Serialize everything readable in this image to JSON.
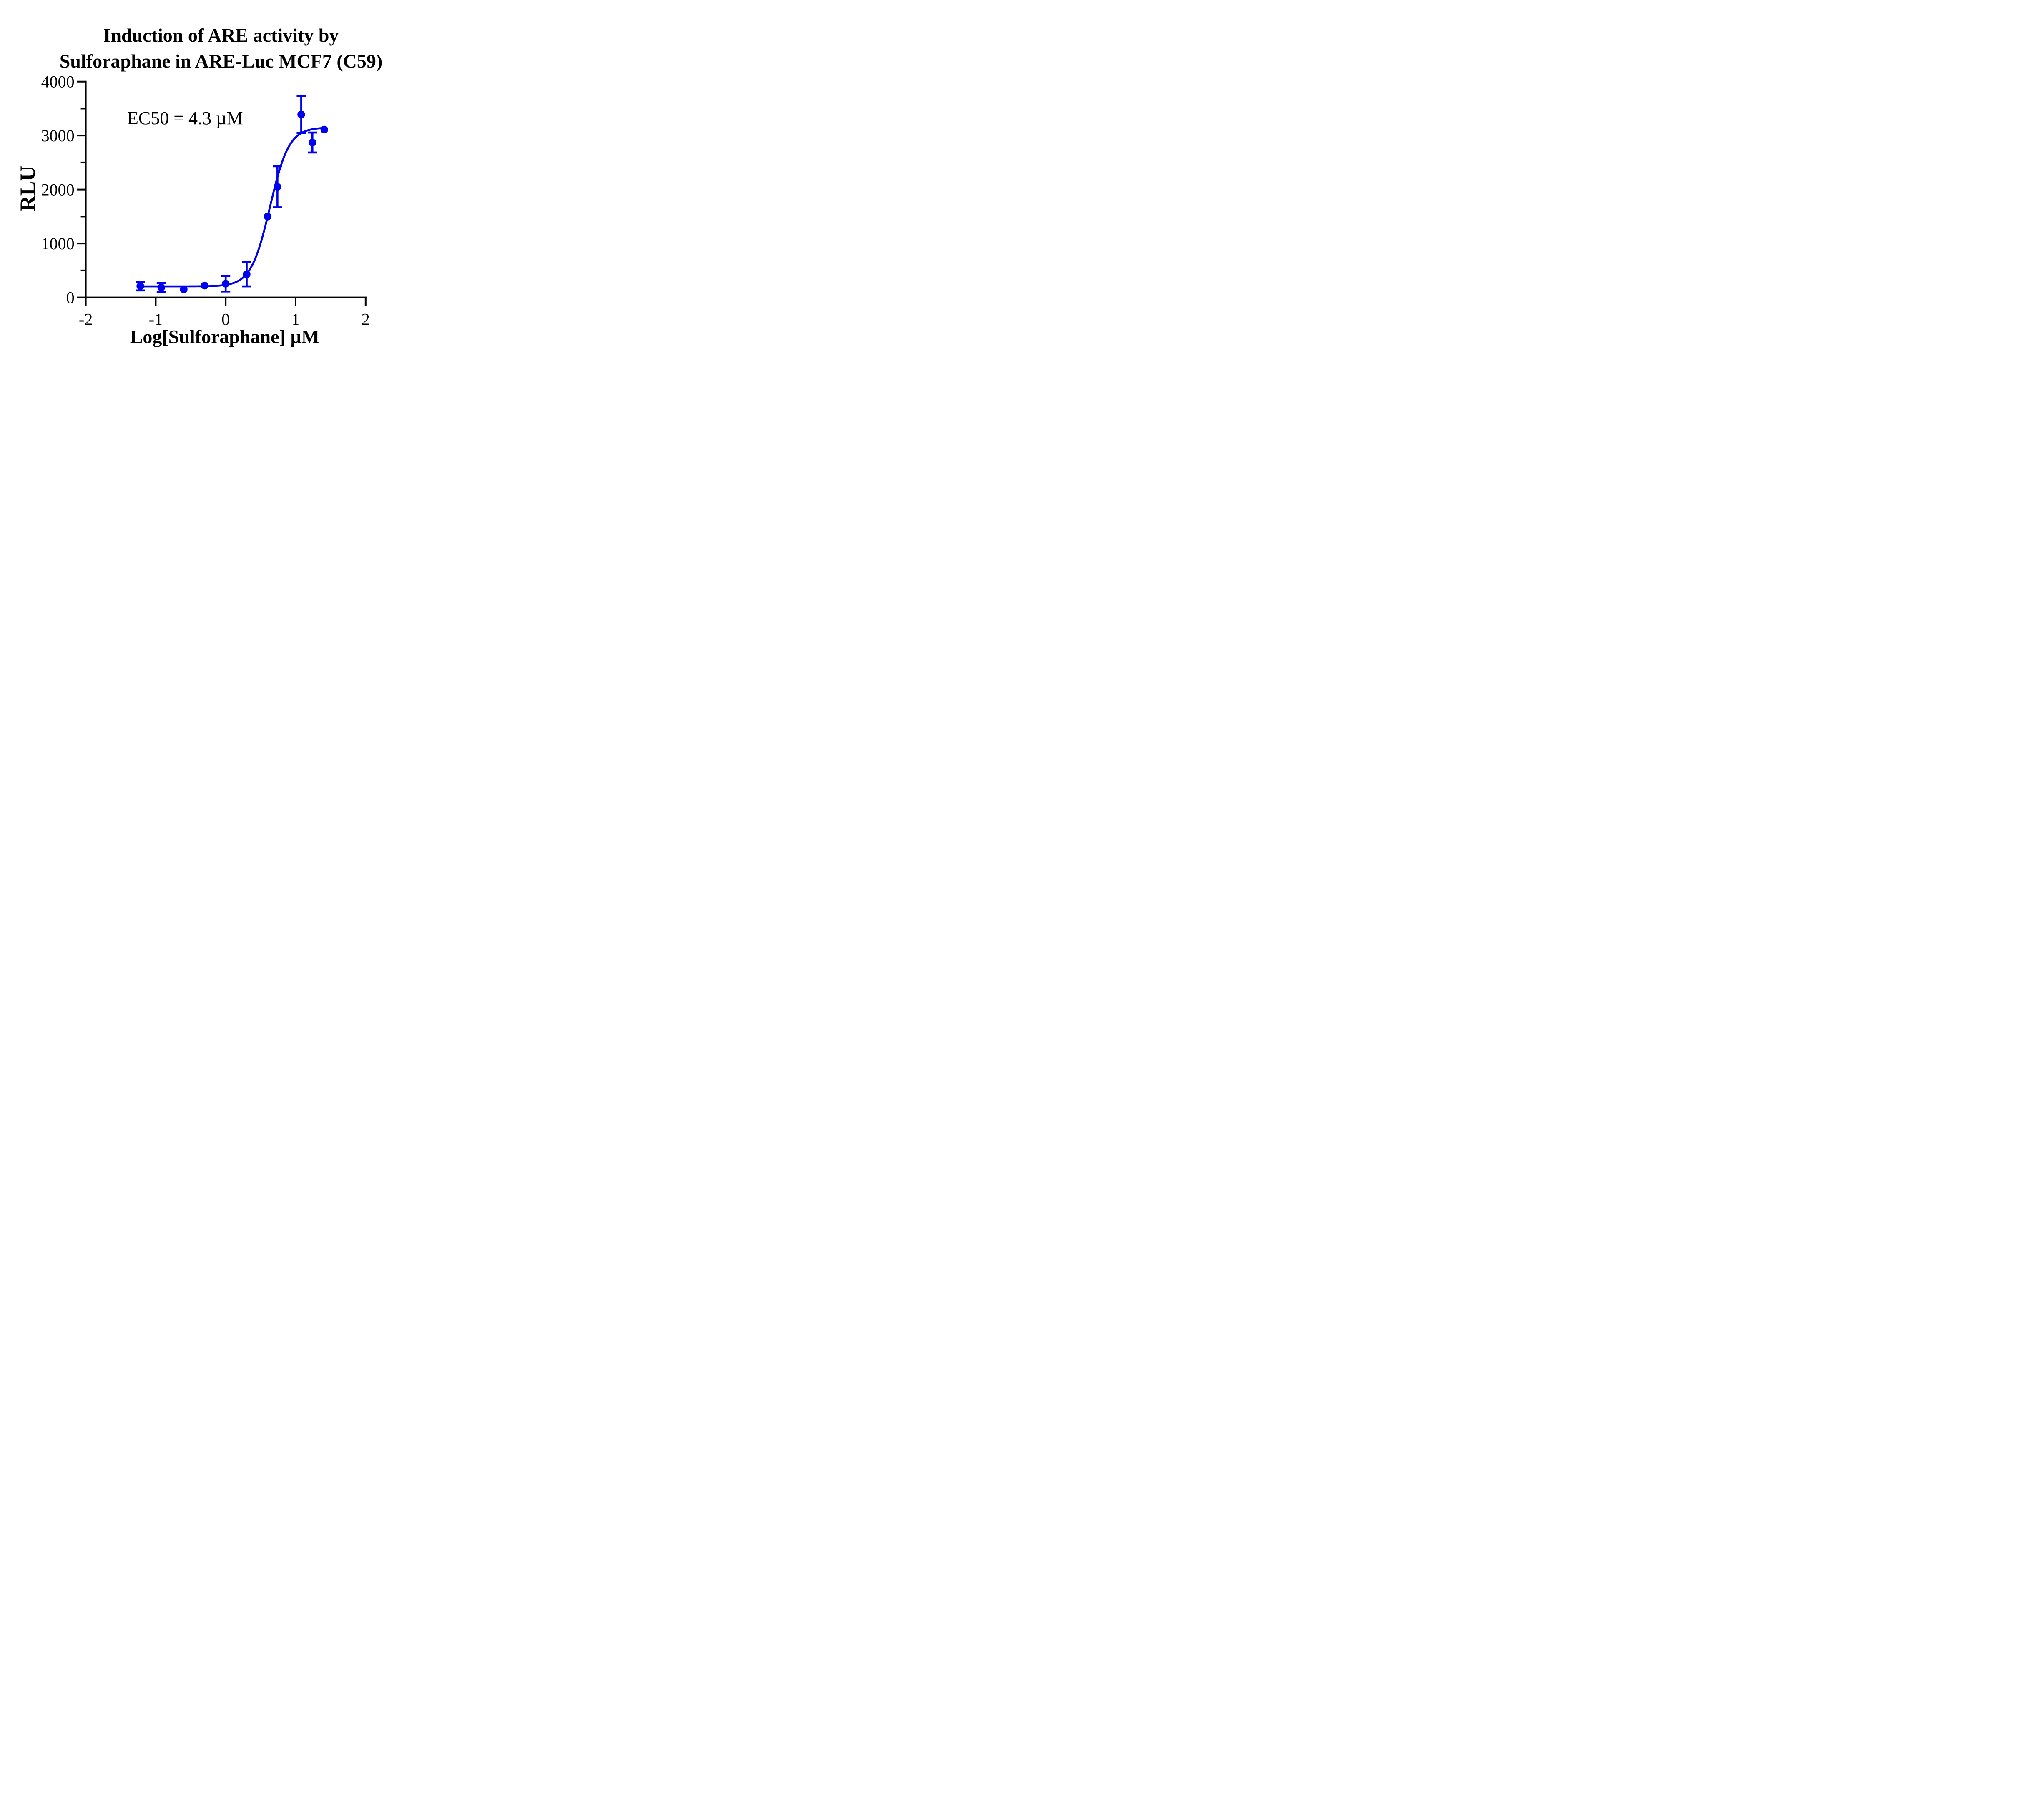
{
  "title": {
    "line1": "Induction of ARE activity by",
    "line2": "Sulforaphane in ARE-Luc MCF7 (C59)"
  },
  "annotation": {
    "ec50_label": "EC50 = 4.3 µM"
  },
  "axes": {
    "x": {
      "label": "Log[Sulforaphane] µM",
      "min": -2,
      "max": 2,
      "ticks": [
        -2,
        -1,
        0,
        1,
        2
      ],
      "tick_labels": [
        "-2",
        "-1",
        "0",
        "1",
        "2"
      ]
    },
    "y": {
      "label": "RLU",
      "min": 0,
      "max": 4000,
      "major_ticks": [
        0,
        1000,
        2000,
        3000,
        4000
      ],
      "minor_ticks": [
        500,
        1500,
        2500,
        3500
      ],
      "tick_labels": [
        "0",
        "1000",
        "2000",
        "3000",
        "4000"
      ]
    }
  },
  "chart_data": {
    "type": "scatter",
    "title": "Induction of ARE activity by Sulforaphane in ARE-Luc MCF7 (C59)",
    "xlabel": "Log[Sulforaphane] µM",
    "ylabel": "RLU",
    "xlim": [
      -2,
      2
    ],
    "ylim": [
      0,
      4000
    ],
    "grid": false,
    "legend": false,
    "ec50_um": 4.3,
    "series": [
      {
        "name": "ARE-Luc MCF7 (C59)",
        "color": "#0000F0",
        "marker": "circle",
        "x": [
          -1.22,
          -0.92,
          -0.6,
          -0.3,
          0.0,
          0.3,
          0.6,
          0.74,
          1.08,
          1.24,
          1.41
        ],
        "y": [
          210,
          185,
          150,
          220,
          255,
          430,
          1500,
          2050,
          3390,
          2870,
          3110
        ],
        "y_err": [
          80,
          82,
          0,
          0,
          145,
          225,
          0,
          380,
          340,
          185,
          0
        ]
      }
    ],
    "fit_curve": {
      "model": "four-parameter logistic (sigmoidal dose-response)",
      "bottom": 205,
      "top": 3150,
      "log_ec50": 0.633,
      "hill_slope": 3.2,
      "x_start": -1.22,
      "x_end": 1.41
    }
  },
  "colors": {
    "series_blue": "#0000F0",
    "axis_black": "#000000",
    "background": "#FFFFFF"
  }
}
